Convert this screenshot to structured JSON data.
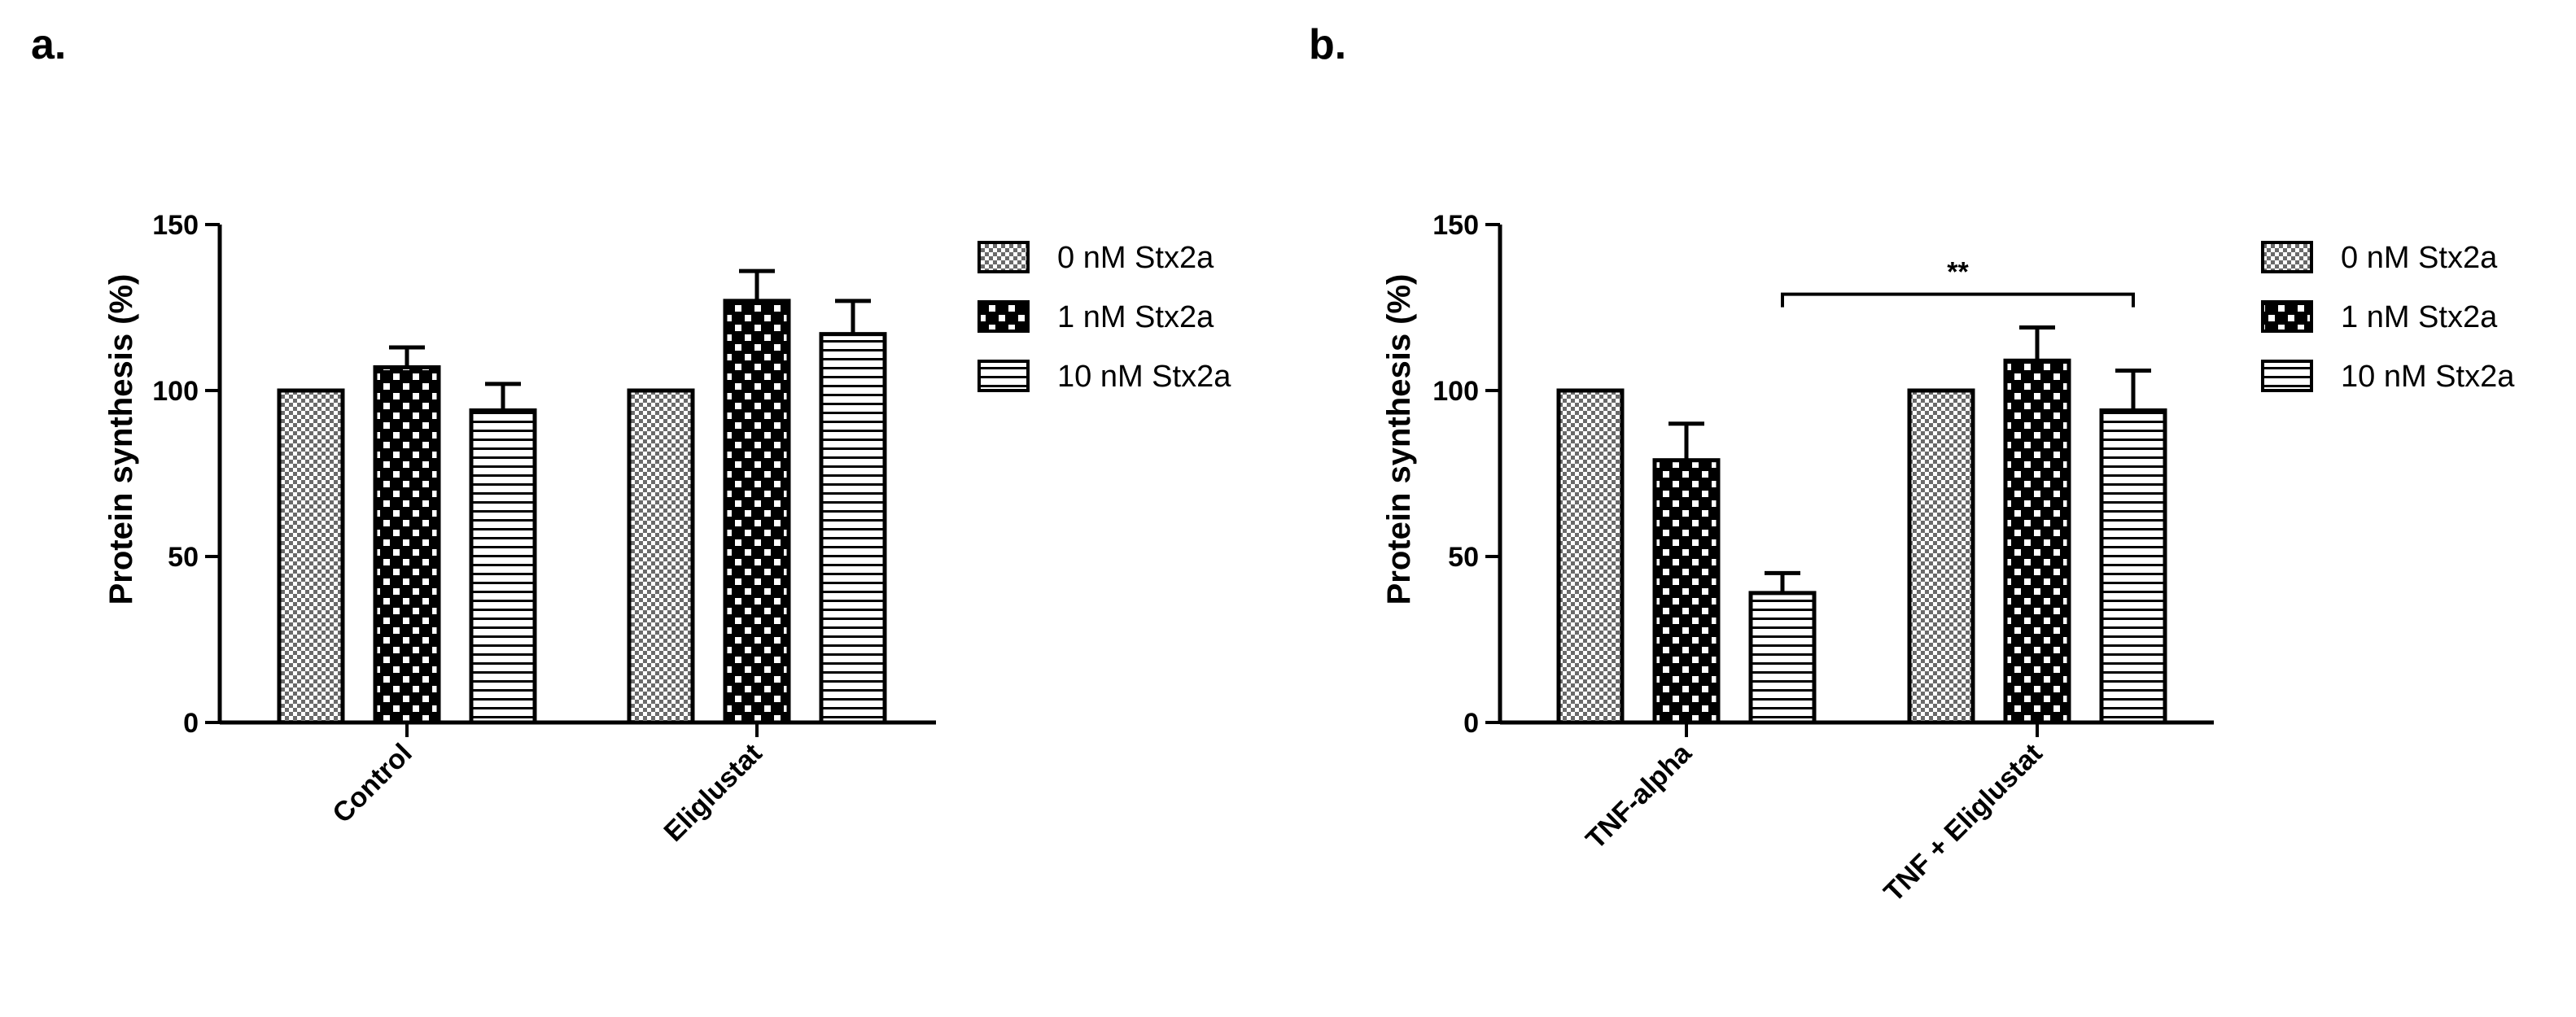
{
  "chart_data": [
    {
      "type": "bar",
      "panel_label": "a.",
      "ylabel": "Protein synthesis (%)",
      "xlabel": "",
      "ylim": [
        0,
        150
      ],
      "yticks": [
        "0",
        "50",
        "100",
        "150"
      ],
      "categories": [
        "Control",
        "Eliglustat"
      ],
      "series": [
        {
          "name": "0 nM Stx2a",
          "pattern": "fine-checker",
          "values": [
            100,
            100
          ],
          "errors": [
            0,
            0
          ]
        },
        {
          "name": "1 nM Stx2a",
          "pattern": "coarse-checker",
          "values": [
            107,
            127
          ],
          "errors": [
            6,
            9
          ]
        },
        {
          "name": "10 nM Stx2a",
          "pattern": "horizontal-stripes",
          "values": [
            94,
            117
          ],
          "errors": [
            8,
            10
          ]
        }
      ],
      "legend_position": "top-right",
      "grid": false,
      "annotations": []
    },
    {
      "type": "bar",
      "panel_label": "b.",
      "ylabel": "Protein synthesis (%)",
      "xlabel": "",
      "ylim": [
        0,
        150
      ],
      "yticks": [
        "0",
        "50",
        "100",
        "150"
      ],
      "categories": [
        "TNF-alpha",
        "TNF + Eliglustat"
      ],
      "series": [
        {
          "name": "0 nM Stx2a",
          "pattern": "fine-checker",
          "values": [
            100,
            100
          ],
          "errors": [
            0,
            0
          ]
        },
        {
          "name": "1 nM Stx2a",
          "pattern": "coarse-checker",
          "values": [
            79,
            109
          ],
          "errors": [
            11,
            10
          ]
        },
        {
          "name": "10 nM Stx2a",
          "pattern": "horizontal-stripes",
          "values": [
            39,
            94
          ],
          "errors": [
            6,
            12
          ]
        }
      ],
      "legend_position": "top-right",
      "grid": false,
      "annotations": [
        {
          "text": "**",
          "from": [
            0,
            2
          ],
          "to": [
            1,
            2
          ],
          "level": 129
        }
      ]
    }
  ]
}
